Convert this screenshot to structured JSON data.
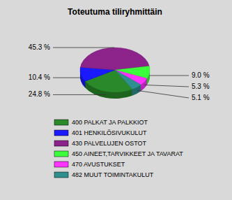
{
  "chart_data": {
    "type": "pie",
    "title": "Toteutuma tiliryhmittäin",
    "categories": [
      "400 PALKAT JA PALKKIOT",
      "401 HENKILÖSIVUKULUT",
      "430 PALVELUJEN OSTOT",
      "450 AINEET,TARVIKKEET JA TAVARAT",
      "470 AVUSTUKSET",
      "482 MUUT TOIMINTAKULUT"
    ],
    "values": [
      24.8,
      10.4,
      45.3,
      9.0,
      5.3,
      5.1
    ],
    "value_labels": [
      "24.8 %",
      "10.4 %",
      "45.3 %",
      "9.0 %",
      "5.3 %",
      "5.1 %"
    ],
    "colors": [
      "#2a8a2a",
      "#1a1aff",
      "#8b238b",
      "#3cff3c",
      "#ff33ff",
      "#2f8f8f"
    ],
    "data_labels": true,
    "legend": "bottom"
  }
}
